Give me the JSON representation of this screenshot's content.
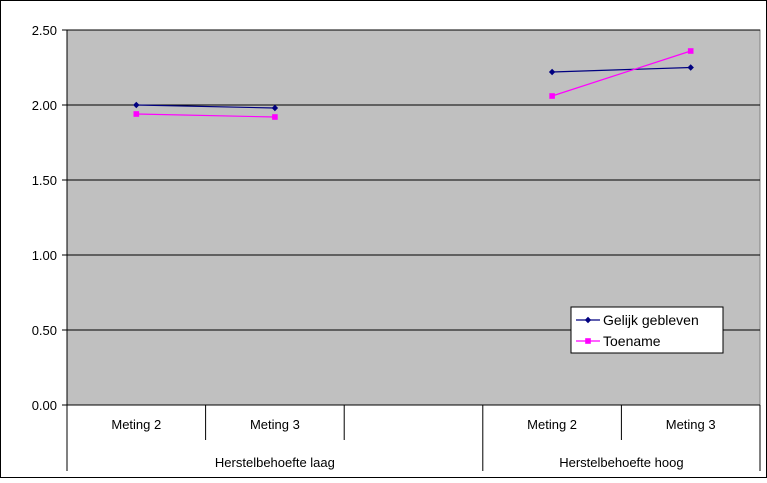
{
  "chart_data": {
    "type": "line",
    "title": "",
    "xlabel": "",
    "ylabel": "",
    "ylim": [
      0,
      2.5
    ],
    "y_ticks": [
      "0.00",
      "0.50",
      "1.00",
      "1.50",
      "2.00",
      "2.50"
    ],
    "grid": true,
    "plot_background": "#C0C0C0",
    "legend_position": "bottom-right (inside plot)",
    "groups": [
      {
        "label": "Herstelbehoefte laag",
        "categories": [
          "Meting 2",
          "Meting 3",
          ""
        ]
      },
      {
        "label": "Herstelbehoefte hoog",
        "categories": [
          "Meting 2",
          "Meting 3"
        ]
      }
    ],
    "series": [
      {
        "name": "Gelijk gebleven",
        "color": "#000080",
        "marker": "diamond",
        "segments": [
          {
            "group": 0,
            "values": [
              2.0,
              1.98
            ]
          },
          {
            "group": 1,
            "values": [
              2.22,
              2.25
            ]
          }
        ]
      },
      {
        "name": "Toename",
        "color": "#FF00FF",
        "marker": "square",
        "segments": [
          {
            "group": 0,
            "values": [
              1.94,
              1.92
            ]
          },
          {
            "group": 1,
            "values": [
              2.06,
              2.36
            ]
          }
        ]
      }
    ]
  }
}
